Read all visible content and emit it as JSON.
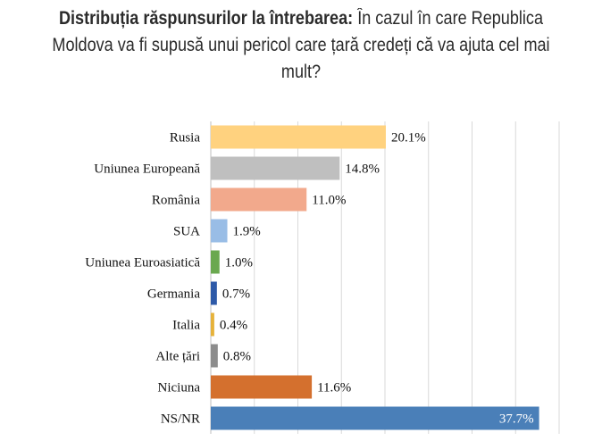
{
  "chart_data": {
    "type": "bar",
    "orientation": "horizontal",
    "title_bold": "Distribuția răspunsurilor la întrebarea:",
    "title_rest": " În cazul în care Republica Moldova va fi supusă unui pericol care țară credeți că va ajuta cel mai mult?",
    "categories": [
      "Rusia",
      "Uniunea Europeană",
      "România",
      "SUA",
      "Uniunea Euroasiatică",
      "Germania",
      "Italia",
      "Alte țări",
      "Niciuna",
      "NS/NR"
    ],
    "values": [
      20.1,
      14.8,
      11.0,
      1.9,
      1.0,
      0.7,
      0.4,
      0.8,
      11.6,
      37.7
    ],
    "value_labels": [
      "20.1%",
      "14.8%",
      "11.0%",
      "1.9%",
      "1.0%",
      "0.7%",
      "0.4%",
      "0.8%",
      "11.6%",
      "37.7%"
    ],
    "colors": [
      "#ffd27f",
      "#bfbfbf",
      "#f2a98c",
      "#99bde6",
      "#6aa84f",
      "#2e5aa8",
      "#e6b23a",
      "#8c8c8c",
      "#d4702e",
      "#4a7fb8"
    ],
    "xlim": [
      0,
      40
    ],
    "grid": true,
    "legend": "none"
  }
}
